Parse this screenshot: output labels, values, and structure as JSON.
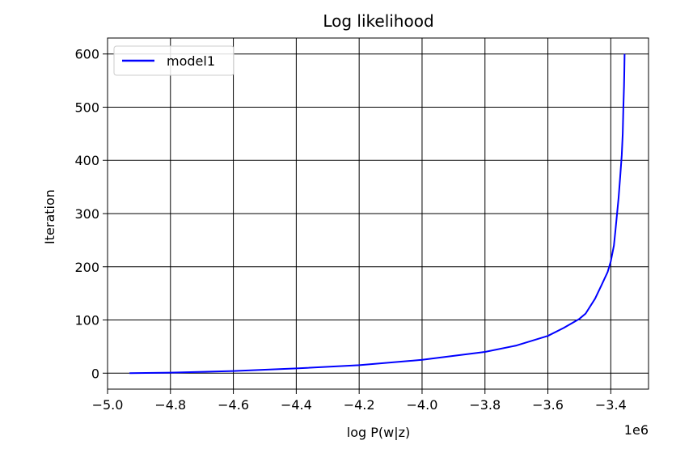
{
  "chart_data": {
    "type": "line",
    "title": "Log likelihood",
    "xlabel": "log P(w|z)",
    "ylabel": "Iteration",
    "x_offset_label": "1e6",
    "xlim": [
      -5.0,
      -3.28
    ],
    "ylim": [
      -30,
      630
    ],
    "xticks": [
      -5.0,
      -4.8,
      -4.6,
      -4.4,
      -4.2,
      -4.0,
      -3.8,
      -3.6,
      -3.4
    ],
    "xtick_labels": [
      "−5.0",
      "−4.8",
      "−4.6",
      "−4.4",
      "−4.2",
      "−4.0",
      "−3.8",
      "−3.6",
      "−3.4"
    ],
    "yticks": [
      0,
      100,
      200,
      300,
      400,
      500,
      600
    ],
    "ytick_labels": [
      "0",
      "100",
      "200",
      "300",
      "400",
      "500",
      "600"
    ],
    "grid": true,
    "legend_position": "top-left",
    "series": [
      {
        "name": "model1",
        "color": "#0000ff",
        "x": [
          -4.93,
          -4.8,
          -4.6,
          -4.4,
          -4.2,
          -4.0,
          -3.8,
          -3.7,
          -3.6,
          -3.55,
          -3.5,
          -3.48,
          -3.45,
          -3.43,
          -3.41,
          -3.4,
          -3.39,
          -3.385,
          -3.38,
          -3.375,
          -3.37,
          -3.365,
          -3.362,
          -3.36,
          -3.358,
          -3.357,
          -3.356
        ],
        "y": [
          0,
          1,
          4,
          9,
          15,
          25,
          40,
          52,
          70,
          85,
          102,
          112,
          140,
          165,
          190,
          210,
          240,
          270,
          300,
          330,
          370,
          410,
          450,
          500,
          540,
          570,
          600
        ]
      }
    ]
  }
}
